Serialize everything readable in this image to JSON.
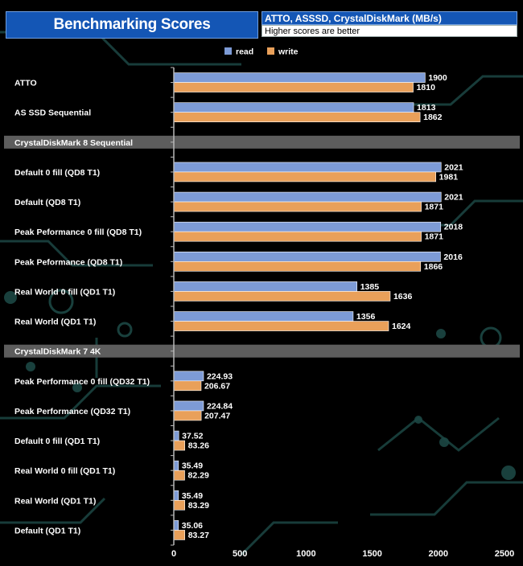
{
  "header": {
    "title": "Benchmarking Scores",
    "subtitle": "ATTO, ASSSD, CrystalDiskMark (MB/s)",
    "note": "Higher scores are better"
  },
  "colors": {
    "read": "#7d9bd6",
    "write": "#e9a05a",
    "section_band": "#5d5d5d",
    "background": "#000000",
    "circuit": "#1f4a47"
  },
  "chart_data": {
    "type": "bar",
    "orientation": "horizontal",
    "xlim": [
      0,
      2500
    ],
    "xticks": [
      0,
      500,
      1000,
      1500,
      2000,
      2500
    ],
    "legend": {
      "position": "top-center",
      "entries": [
        "read",
        "write"
      ]
    },
    "series": [
      {
        "name": "read",
        "color": "#7d9bd6"
      },
      {
        "name": "write",
        "color": "#e9a05a"
      }
    ],
    "rows": [
      {
        "kind": "bar",
        "label": "ATTO",
        "read": 1900,
        "write": 1810,
        "read_label": "1900",
        "write_label": "1810"
      },
      {
        "kind": "bar",
        "label": "AS SSD Sequential",
        "read": 1813,
        "write": 1862,
        "read_label": "1813",
        "write_label": "1862"
      },
      {
        "kind": "section",
        "label": "CrystalDiskMark 8 Sequential"
      },
      {
        "kind": "bar",
        "label": "Default 0 fill (QD8 T1)",
        "read": 2021,
        "write": 1981,
        "read_label": "2021",
        "write_label": "1981"
      },
      {
        "kind": "bar",
        "label": "Default (QD8 T1)",
        "read": 2021,
        "write": 1871,
        "read_label": "2021",
        "write_label": "1871"
      },
      {
        "kind": "bar",
        "label": "Peak Peformance 0 fill (QD8 T1)",
        "read": 2018,
        "write": 1871,
        "read_label": "2018",
        "write_label": "1871"
      },
      {
        "kind": "bar",
        "label": "Peak Peformance (QD8 T1)",
        "read": 2016,
        "write": 1866,
        "read_label": "2016",
        "write_label": "1866"
      },
      {
        "kind": "bar",
        "label": "Real World 0 fill (QD1 T1)",
        "read": 1385,
        "write": 1636,
        "read_label": "1385",
        "write_label": "1636"
      },
      {
        "kind": "bar",
        "label": "Real World (QD1 T1)",
        "read": 1356,
        "write": 1624,
        "read_label": "1356",
        "write_label": "1624"
      },
      {
        "kind": "section",
        "label": "CrystalDiskMark 7 4K"
      },
      {
        "kind": "bar",
        "label": "Peak Performance 0 fill (QD32 T1)",
        "read": 224.93,
        "write": 206.67,
        "read_label": "224.93",
        "write_label": "206.67"
      },
      {
        "kind": "bar",
        "label": "Peak Performance (QD32 T1)",
        "read": 224.84,
        "write": 207.47,
        "read_label": "224.84",
        "write_label": "207.47"
      },
      {
        "kind": "bar",
        "label": "Default 0 fill (QD1 T1)",
        "read": 37.52,
        "write": 83.26,
        "read_label": "37.52",
        "write_label": "83.26"
      },
      {
        "kind": "bar",
        "label": "Real World 0 fill  (QD1 T1)",
        "read": 35.49,
        "write": 82.29,
        "read_label": "35.49",
        "write_label": "82.29"
      },
      {
        "kind": "bar",
        "label": "Real World  (QD1 T1)",
        "read": 35.49,
        "write": 83.29,
        "read_label": "35.49",
        "write_label": "83.29"
      },
      {
        "kind": "bar",
        "label": "Default (QD1 T1)",
        "read": 35.06,
        "write": 83.27,
        "read_label": "35.06",
        "write_label": "83.27"
      }
    ]
  }
}
